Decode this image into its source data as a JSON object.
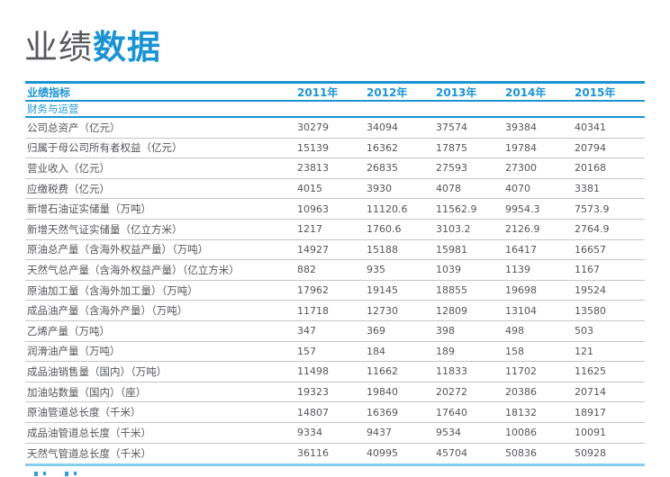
{
  "title": {
    "light": "业绩",
    "bold": "数据"
  },
  "table": {
    "header": {
      "indicator": "业绩指标",
      "years": [
        "2011年",
        "2012年",
        "2013年",
        "2014年",
        "2015年"
      ]
    },
    "section": "财务与运营",
    "rows": [
      {
        "label": "公司总资产（亿元）",
        "values": [
          "30279",
          "34094",
          "37574",
          "39384",
          "40341"
        ]
      },
      {
        "label": "归属于母公司所有者权益（亿元）",
        "values": [
          "15139",
          "16362",
          "17875",
          "19784",
          "20794"
        ]
      },
      {
        "label": "营业收入（亿元）",
        "values": [
          "23813",
          "26835",
          "27593",
          "27300",
          "20168"
        ]
      },
      {
        "label": "应缴税费（亿元）",
        "values": [
          "4015",
          "3930",
          "4078",
          "4070",
          "3381"
        ]
      },
      {
        "label": "新增石油证实储量（万吨）",
        "values": [
          "10963",
          "11120.6",
          "11562.9",
          "9954.3",
          "7573.9"
        ]
      },
      {
        "label": "新增天然气证实储量（亿立方米）",
        "values": [
          "1217",
          "1760.6",
          "3103.2",
          "2126.9",
          "2764.9"
        ]
      },
      {
        "label": "原油总产量（含海外权益产量）（万吨）",
        "values": [
          "14927",
          "15188",
          "15981",
          "16417",
          "16657"
        ]
      },
      {
        "label": "天然气总产量（含海外权益产量）（亿立方米）",
        "values": [
          "882",
          "935",
          "1039",
          "1139",
          "1167"
        ]
      },
      {
        "label": "原油加工量（含海外加工量）（万吨）",
        "values": [
          "17962",
          "19145",
          "18855",
          "19698",
          "19524"
        ]
      },
      {
        "label": "成品油产量（含海外产量）（万吨）",
        "values": [
          "11718",
          "12730",
          "12809",
          "13104",
          "13580"
        ]
      },
      {
        "label": "乙烯产量（万吨）",
        "values": [
          "347",
          "369",
          "398",
          "498",
          "503"
        ]
      },
      {
        "label": "润滑油产量（万吨）",
        "values": [
          "157",
          "184",
          "189",
          "158",
          "121"
        ]
      },
      {
        "label": "成品油销售量（国内）（万吨）",
        "values": [
          "11498",
          "11662",
          "11833",
          "11702",
          "11625"
        ]
      },
      {
        "label": "加油站数量（国内）（座）",
        "values": [
          "19323",
          "19840",
          "20272",
          "20386",
          "20714"
        ]
      },
      {
        "label": "原油管道总长度（千米）",
        "values": [
          "14807",
          "16369",
          "17640",
          "18132",
          "18917"
        ]
      },
      {
        "label": "成品油管道总长度（千米）",
        "values": [
          "9334",
          "9437",
          "9534",
          "10086",
          "10091"
        ]
      },
      {
        "label": "天然气管道总长度（千米）",
        "values": [
          "36116",
          "40995",
          "45704",
          "50836",
          "50928"
        ]
      }
    ]
  },
  "colors": {
    "accent_blue": "#1c94d4",
    "text_dark": "#55565a",
    "row_separator": "#c4c5c7",
    "bottom_rule_blue": "#85cfee"
  }
}
